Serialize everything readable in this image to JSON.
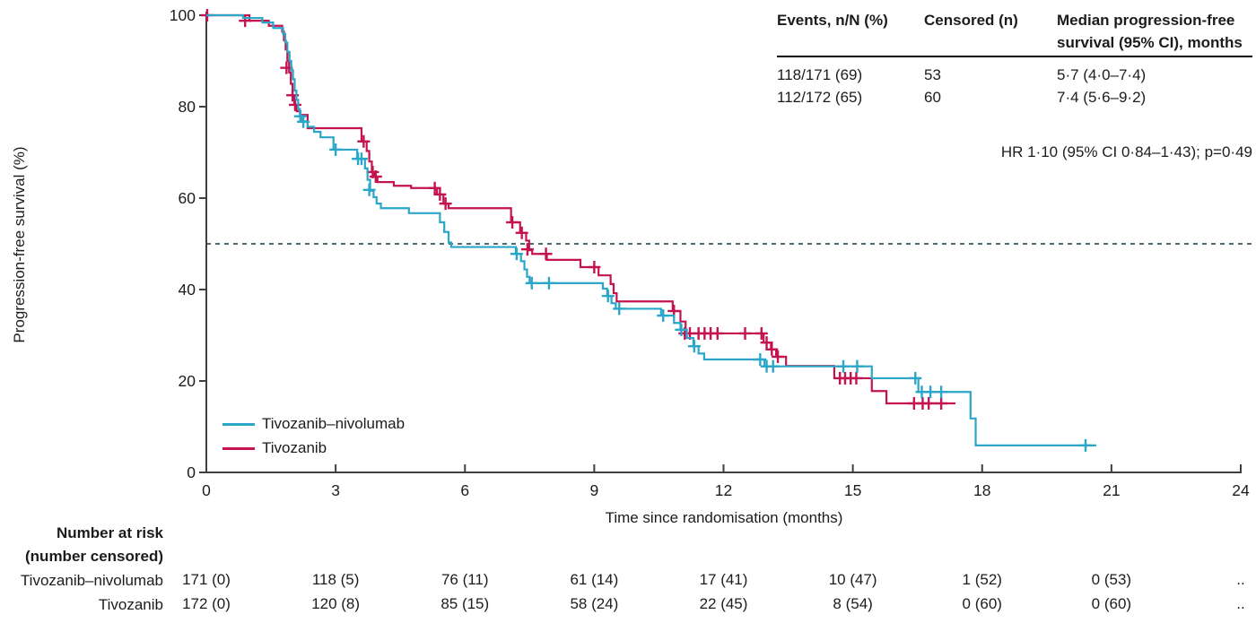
{
  "colors": {
    "tivo_nivo": "#2AA6C8",
    "tivo": "#C4134F",
    "axis": "#3F3F3F",
    "reference_line": "#4F6A72",
    "text": "#1C1C1C"
  },
  "chart_data": {
    "type": "line",
    "subtype": "kaplan-meier",
    "title": "",
    "xlabel": "Time since randomisation (months)",
    "ylabel": "Progression-free survival (%)",
    "xlim": [
      0,
      24
    ],
    "ylim": [
      0,
      100
    ],
    "x_ticks": [
      0,
      3,
      6,
      9,
      12,
      15,
      18,
      21,
      24
    ],
    "y_ticks": [
      0,
      20,
      40,
      60,
      80,
      100
    ],
    "grid": false,
    "legend_position": "lower-left-inside",
    "reference_line_pct": 50,
    "series": [
      {
        "name": "Tivozanib–nivolumab",
        "color": "#2AA6C8",
        "points": [
          [
            0,
            100
          ],
          [
            0.85,
            99.4
          ],
          [
            1.3,
            98.4
          ],
          [
            1.55,
            97.2
          ],
          [
            1.78,
            95.9
          ],
          [
            1.83,
            94
          ],
          [
            1.88,
            92
          ],
          [
            1.93,
            90
          ],
          [
            1.97,
            88
          ],
          [
            2.01,
            86
          ],
          [
            2.05,
            83.5
          ],
          [
            2.09,
            81.5
          ],
          [
            2.13,
            79.5
          ],
          [
            2.17,
            78
          ],
          [
            2.22,
            76.8
          ],
          [
            2.35,
            75.6
          ],
          [
            2.5,
            74.5
          ],
          [
            2.65,
            73.3
          ],
          [
            2.95,
            70.6
          ],
          [
            3.5,
            68.6
          ],
          [
            3.68,
            66.5
          ],
          [
            3.74,
            64
          ],
          [
            3.8,
            61.6
          ],
          [
            3.88,
            60.2
          ],
          [
            3.95,
            58.8
          ],
          [
            4.05,
            57.8
          ],
          [
            4.7,
            56.7
          ],
          [
            5.42,
            54.7
          ],
          [
            5.52,
            52.6
          ],
          [
            5.62,
            50.3
          ],
          [
            5.68,
            49.3
          ],
          [
            7.18,
            47.8
          ],
          [
            7.3,
            46.2
          ],
          [
            7.38,
            44.4
          ],
          [
            7.44,
            42.8
          ],
          [
            7.5,
            41.4
          ],
          [
            9.2,
            40.2
          ],
          [
            9.3,
            38.6
          ],
          [
            9.4,
            37
          ],
          [
            9.5,
            35.8
          ],
          [
            10.55,
            34.3
          ],
          [
            10.85,
            32.7
          ],
          [
            11.0,
            31.2
          ],
          [
            11.15,
            29.4
          ],
          [
            11.3,
            27.6
          ],
          [
            11.42,
            26
          ],
          [
            11.55,
            24.7
          ],
          [
            12.95,
            23.2
          ],
          [
            15.44,
            20.6
          ],
          [
            16.52,
            17.6
          ],
          [
            17.73,
            11.8
          ],
          [
            17.85,
            5.9
          ],
          [
            20.65,
            5.9
          ]
        ],
        "censors": [
          [
            2.18,
            77.9
          ],
          [
            2.25,
            76.7
          ],
          [
            3.0,
            70.6
          ],
          [
            3.52,
            68.6
          ],
          [
            3.6,
            68.6
          ],
          [
            3.78,
            61.8
          ],
          [
            7.2,
            47.8
          ],
          [
            7.55,
            41.4
          ],
          [
            7.95,
            41.4
          ],
          [
            9.32,
            38.6
          ],
          [
            9.58,
            35.8
          ],
          [
            10.6,
            34.3
          ],
          [
            11.02,
            31.2
          ],
          [
            11.32,
            27.6
          ],
          [
            12.85,
            24.7
          ],
          [
            13.0,
            23.2
          ],
          [
            13.15,
            23.2
          ],
          [
            14.78,
            23.2
          ],
          [
            15.1,
            23.2
          ],
          [
            16.45,
            20.6
          ],
          [
            16.6,
            17.6
          ],
          [
            16.8,
            17.6
          ],
          [
            17.05,
            17.6
          ],
          [
            20.4,
            5.9
          ]
        ]
      },
      {
        "name": "Tivozanib",
        "color": "#C4134F",
        "points": [
          [
            0,
            100
          ],
          [
            1.0,
            98.8
          ],
          [
            1.45,
            97.7
          ],
          [
            1.76,
            96.4
          ],
          [
            1.8,
            94.5
          ],
          [
            1.84,
            92.5
          ],
          [
            1.88,
            90
          ],
          [
            1.92,
            87.5
          ],
          [
            1.96,
            85
          ],
          [
            2.0,
            82.5
          ],
          [
            2.04,
            80.4
          ],
          [
            2.1,
            79
          ],
          [
            2.18,
            78.2
          ],
          [
            2.35,
            75.3
          ],
          [
            3.6,
            72.4
          ],
          [
            3.72,
            70.3
          ],
          [
            3.78,
            68
          ],
          [
            3.84,
            65.7
          ],
          [
            3.9,
            64.7
          ],
          [
            3.97,
            63.5
          ],
          [
            4.35,
            62.7
          ],
          [
            4.75,
            62.2
          ],
          [
            5.35,
            60.8
          ],
          [
            5.5,
            58.8
          ],
          [
            5.62,
            57.8
          ],
          [
            7.07,
            54.7
          ],
          [
            7.28,
            52.4
          ],
          [
            7.42,
            50.7
          ],
          [
            7.49,
            48.6
          ],
          [
            7.56,
            47.8
          ],
          [
            7.9,
            46.5
          ],
          [
            8.68,
            44.9
          ],
          [
            9.1,
            43.1
          ],
          [
            9.38,
            41.2
          ],
          [
            9.45,
            39.2
          ],
          [
            9.52,
            37.4
          ],
          [
            10.82,
            35.3
          ],
          [
            11.0,
            33
          ],
          [
            11.12,
            30.4
          ],
          [
            12.93,
            28.4
          ],
          [
            13.1,
            26.9
          ],
          [
            13.22,
            25.3
          ],
          [
            13.45,
            23.3
          ],
          [
            14.57,
            20.6
          ],
          [
            15.44,
            17.8
          ],
          [
            15.78,
            15.1
          ],
          [
            17.38,
            15.1
          ]
        ],
        "censors": [
          [
            0.02,
            100
          ],
          [
            0.9,
            98.8
          ],
          [
            1.86,
            88.5
          ],
          [
            2.0,
            82.5
          ],
          [
            2.06,
            80.4
          ],
          [
            3.65,
            72.4
          ],
          [
            3.86,
            65.7
          ],
          [
            3.93,
            64.7
          ],
          [
            5.3,
            62.2
          ],
          [
            5.42,
            60.8
          ],
          [
            5.55,
            58.8
          ],
          [
            7.1,
            54.7
          ],
          [
            7.32,
            52.4
          ],
          [
            7.45,
            48.8
          ],
          [
            7.88,
            47.8
          ],
          [
            9.0,
            44.9
          ],
          [
            10.85,
            35.3
          ],
          [
            11.1,
            30.4
          ],
          [
            11.22,
            30.4
          ],
          [
            11.42,
            30.4
          ],
          [
            11.56,
            30.4
          ],
          [
            11.7,
            30.4
          ],
          [
            11.86,
            30.4
          ],
          [
            12.5,
            30.4
          ],
          [
            12.88,
            30.4
          ],
          [
            13.0,
            28.4
          ],
          [
            13.12,
            26.9
          ],
          [
            13.26,
            25.3
          ],
          [
            14.7,
            20.6
          ],
          [
            14.82,
            20.6
          ],
          [
            14.95,
            20.6
          ],
          [
            15.08,
            20.6
          ],
          [
            16.42,
            15.1
          ],
          [
            16.62,
            15.1
          ],
          [
            16.76,
            15.1
          ],
          [
            17.05,
            15.1
          ]
        ]
      }
    ]
  },
  "events_table": {
    "headers": [
      "Events, n/N (%)",
      "Censored (n)",
      "Median progression-free survival (95% CI), months"
    ],
    "rows": [
      {
        "cells": [
          "118/171 (69)",
          "53",
          "5·7 (4·0–7·4)"
        ]
      },
      {
        "cells": [
          "112/172 (65)",
          "60",
          "7·4 (5·6–9·2)"
        ]
      }
    ]
  },
  "annotations": {
    "hr_text": "HR 1·10 (95% CI 0·84–1·43); p=0·49"
  },
  "risk_table": {
    "header_line1": "Number at risk",
    "header_line2": "(number censored)",
    "rows": [
      {
        "label": "Tivozanib–nivolumab",
        "values": [
          "171 (0)",
          "118 (5)",
          "76 (11)",
          "61 (14)",
          "17 (41)",
          "10 (47)",
          "1 (52)",
          "0 (53)",
          ".."
        ]
      },
      {
        "label": "Tivozanib",
        "values": [
          "172 (0)",
          "120 (8)",
          "85 (15)",
          "58 (24)",
          "22 (45)",
          "8 (54)",
          "0 (60)",
          "0 (60)",
          ".."
        ]
      }
    ]
  }
}
